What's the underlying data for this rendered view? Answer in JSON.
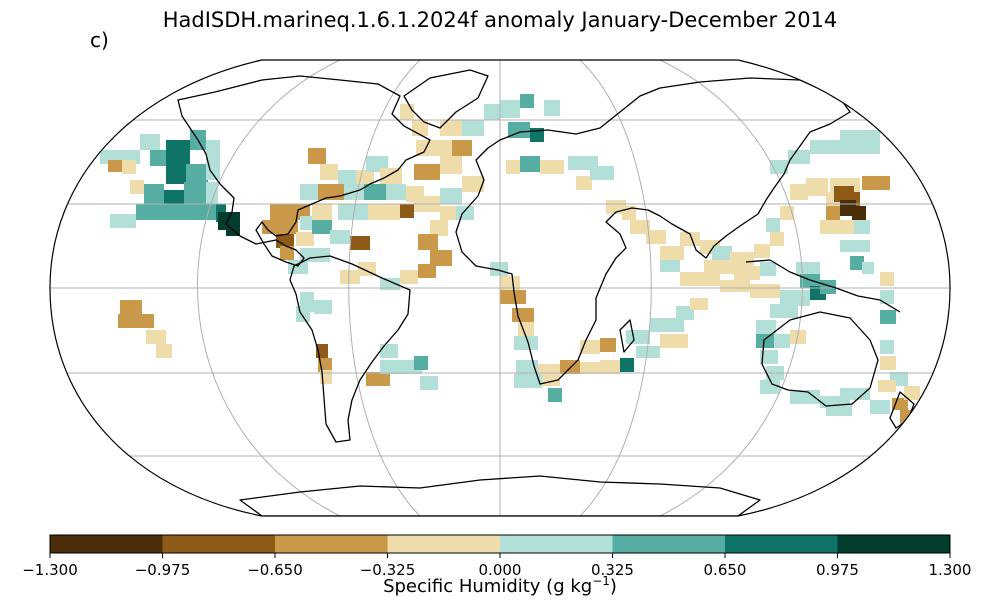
{
  "title": "HadISDH.marineq.1.6.1.2024f anomaly January-December 2014",
  "panel_label": "c)",
  "colorbar": {
    "label_text": "Specific Humidity (g kg",
    "label_sup": "−1",
    "label_close": ")",
    "ticks": [
      "−1.300",
      "−0.975",
      "−0.650",
      "−0.325",
      "0.000",
      "0.325",
      "0.650",
      "0.975",
      "1.300"
    ],
    "colors": [
      "#4a2d09",
      "#8e5a17",
      "#c99848",
      "#eedcaa",
      "#b2e0d8",
      "#56ada2",
      "#0f7366",
      "#013c2f"
    ]
  },
  "colors": {
    "frame": "#000000",
    "grid": "#b0b0b0",
    "coast": "#000000"
  }
}
